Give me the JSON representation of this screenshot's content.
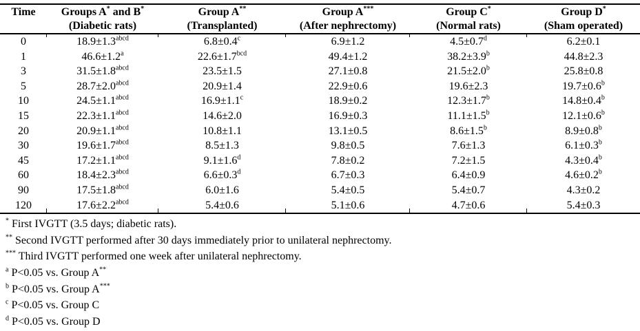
{
  "table": {
    "columns": [
      {
        "title_parts": [
          {
            "t": "Time"
          }
        ],
        "subtitle": ""
      },
      {
        "title_parts": [
          {
            "t": "Groups A"
          },
          {
            "s": "*"
          },
          {
            "t": " and B"
          },
          {
            "s": "*"
          }
        ],
        "subtitle": "(Diabetic rats)"
      },
      {
        "title_parts": [
          {
            "t": "Group A"
          },
          {
            "s": "**"
          }
        ],
        "subtitle": "(Transplanted)"
      },
      {
        "title_parts": [
          {
            "t": "Group A"
          },
          {
            "s": "***"
          }
        ],
        "subtitle": "(After nephrectomy)"
      },
      {
        "title_parts": [
          {
            "t": "Group C"
          },
          {
            "s": "*"
          }
        ],
        "subtitle": "(Normal rats)"
      },
      {
        "title_parts": [
          {
            "t": "Group D"
          },
          {
            "s": "*"
          }
        ],
        "subtitle": "(Sham operated)"
      }
    ],
    "rows": [
      {
        "time": "0",
        "values": [
          {
            "v": "18.9±1.3",
            "sup": "abcd"
          },
          {
            "v": "6.8±0.4",
            "sup": "c"
          },
          {
            "v": "6.9±1.2",
            "sup": ""
          },
          {
            "v": "4.5±0.7",
            "sup": "d"
          },
          {
            "v": "6.2±0.1",
            "sup": ""
          }
        ]
      },
      {
        "time": "1",
        "values": [
          {
            "v": "46.6±1.2",
            "sup": "a"
          },
          {
            "v": "22.6±1.7",
            "sup": "bcd"
          },
          {
            "v": "49.4±1.2",
            "sup": ""
          },
          {
            "v": "38.2±3.9",
            "sup": "b"
          },
          {
            "v": "44.8±2.3",
            "sup": ""
          }
        ]
      },
      {
        "time": "3",
        "values": [
          {
            "v": "31.5±1.8",
            "sup": "abcd"
          },
          {
            "v": "23.5±1.5",
            "sup": ""
          },
          {
            "v": "27.1±0.8",
            "sup": ""
          },
          {
            "v": "21.5±2.0",
            "sup": "b"
          },
          {
            "v": "25.8±0.8",
            "sup": ""
          }
        ]
      },
      {
        "time": "5",
        "values": [
          {
            "v": "28.7±2.0",
            "sup": "abcd"
          },
          {
            "v": "20.9±1.4",
            "sup": ""
          },
          {
            "v": "22.9±0.6",
            "sup": ""
          },
          {
            "v": "19.6±2.3",
            "sup": ""
          },
          {
            "v": "19.7±0.6",
            "sup": "b"
          }
        ]
      },
      {
        "time": "10",
        "values": [
          {
            "v": "24.5±1.1",
            "sup": "abcd"
          },
          {
            "v": "16.9±1.1",
            "sup": "c"
          },
          {
            "v": "18.9±0.2",
            "sup": ""
          },
          {
            "v": "12.3±1.7",
            "sup": "b"
          },
          {
            "v": "14.8±0.4",
            "sup": "b"
          }
        ]
      },
      {
        "time": "15",
        "values": [
          {
            "v": "22.3±1.1",
            "sup": "abcd"
          },
          {
            "v": "14.6±2.0",
            "sup": ""
          },
          {
            "v": "16.9±0.3",
            "sup": ""
          },
          {
            "v": "11.1±1.5",
            "sup": "b"
          },
          {
            "v": "12.1±0.6",
            "sup": "b"
          }
        ]
      },
      {
        "time": "20",
        "values": [
          {
            "v": "20.9±1.1",
            "sup": "abcd"
          },
          {
            "v": "10.8±1.1",
            "sup": ""
          },
          {
            "v": "13.1±0.5",
            "sup": ""
          },
          {
            "v": "8.6±1.5",
            "sup": "b"
          },
          {
            "v": "8.9±0.8",
            "sup": "b"
          }
        ]
      },
      {
        "time": "30",
        "values": [
          {
            "v": "19.6±1.7",
            "sup": "abcd"
          },
          {
            "v": "8.5±1.3",
            "sup": ""
          },
          {
            "v": "9.8±0.5",
            "sup": ""
          },
          {
            "v": "7.6±1.3",
            "sup": ""
          },
          {
            "v": "6.1±0.3",
            "sup": "b"
          }
        ]
      },
      {
        "time": "45",
        "values": [
          {
            "v": "17.2±1.1",
            "sup": "abcd"
          },
          {
            "v": "9.1±1.6",
            "sup": "d"
          },
          {
            "v": "7.8±0.2",
            "sup": ""
          },
          {
            "v": "7.2±1.5",
            "sup": ""
          },
          {
            "v": "4.3±0.4",
            "sup": "b"
          }
        ]
      },
      {
        "time": "60",
        "values": [
          {
            "v": "18.4±2.3",
            "sup": "abcd"
          },
          {
            "v": "6.6±0.3",
            "sup": "d"
          },
          {
            "v": "6.7±0.3",
            "sup": ""
          },
          {
            "v": "6.4±0.9",
            "sup": ""
          },
          {
            "v": "4.6±0.2",
            "sup": "b"
          }
        ]
      },
      {
        "time": "90",
        "values": [
          {
            "v": "17.5±1.8",
            "sup": "abcd"
          },
          {
            "v": "6.0±1.6",
            "sup": ""
          },
          {
            "v": "5.4±0.5",
            "sup": ""
          },
          {
            "v": "5.4±0.7",
            "sup": ""
          },
          {
            "v": "4.3±0.2",
            "sup": ""
          }
        ]
      },
      {
        "time": "120",
        "values": [
          {
            "v": "17.6±2.2",
            "sup": "abcd"
          },
          {
            "v": "5.4±0.6",
            "sup": ""
          },
          {
            "v": "5.1±0.6",
            "sup": ""
          },
          {
            "v": "4.7±0.6",
            "sup": ""
          },
          {
            "v": "5.4±0.3",
            "sup": ""
          }
        ]
      }
    ]
  },
  "footnotes": [
    {
      "parts": [
        {
          "s": "*"
        },
        {
          "t": " First IVGTT (3.5 days; diabetic rats)."
        }
      ]
    },
    {
      "parts": [
        {
          "s": "**"
        },
        {
          "t": " Second IVGTT performed after 30 days immediately prior to unilateral nephrectomy."
        }
      ]
    },
    {
      "parts": [
        {
          "s": "***"
        },
        {
          "t": " Third IVGTT performed one week after unilateral nephrectomy."
        }
      ]
    },
    {
      "parts": [
        {
          "s": "a"
        },
        {
          "t": " P<0.05 vs. Group A"
        },
        {
          "s": "**"
        }
      ]
    },
    {
      "parts": [
        {
          "s": "b"
        },
        {
          "t": " P<0.05 vs. Group A"
        },
        {
          "s": "***"
        }
      ]
    },
    {
      "parts": [
        {
          "s": "c"
        },
        {
          "t": " P<0.05 vs. Group C"
        }
      ]
    },
    {
      "parts": [
        {
          "s": "d"
        },
        {
          "t": " P<0.05 vs. Group D"
        }
      ]
    }
  ]
}
